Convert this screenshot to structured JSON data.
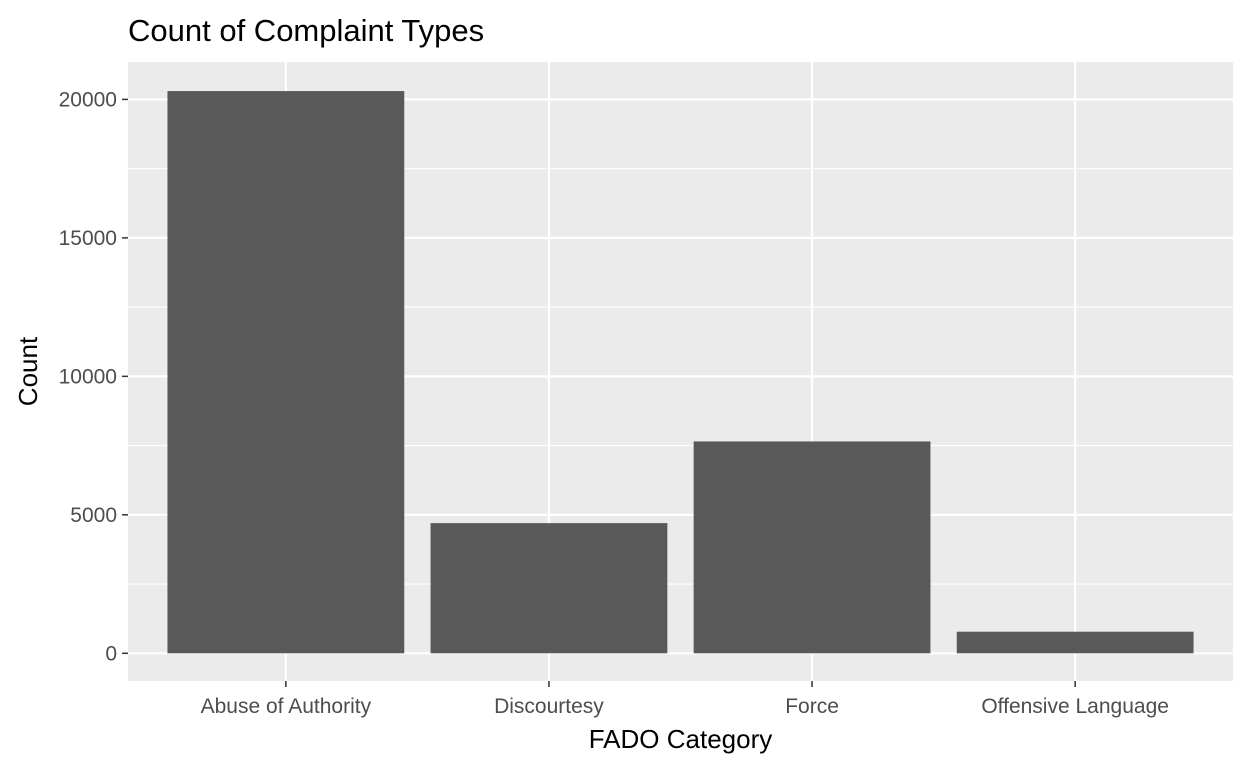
{
  "chart_data": {
    "type": "bar",
    "title": "Count of Complaint Types",
    "xlabel": "FADO Category",
    "ylabel": "Count",
    "categories": [
      "Abuse of Authority",
      "Discourtesy",
      "Force",
      "Offensive Language"
    ],
    "values": [
      20300,
      4700,
      7650,
      780
    ],
    "ylim": [
      -1000,
      21350
    ],
    "yticks": [
      0,
      5000,
      10000,
      15000,
      20000
    ],
    "grid": true,
    "legend": "none",
    "colors": {
      "bar": "#595959",
      "panel": "#ebebeb",
      "grid": "#ffffff",
      "tick_text": "#4d4d4d",
      "tick_mark": "#333333"
    }
  }
}
